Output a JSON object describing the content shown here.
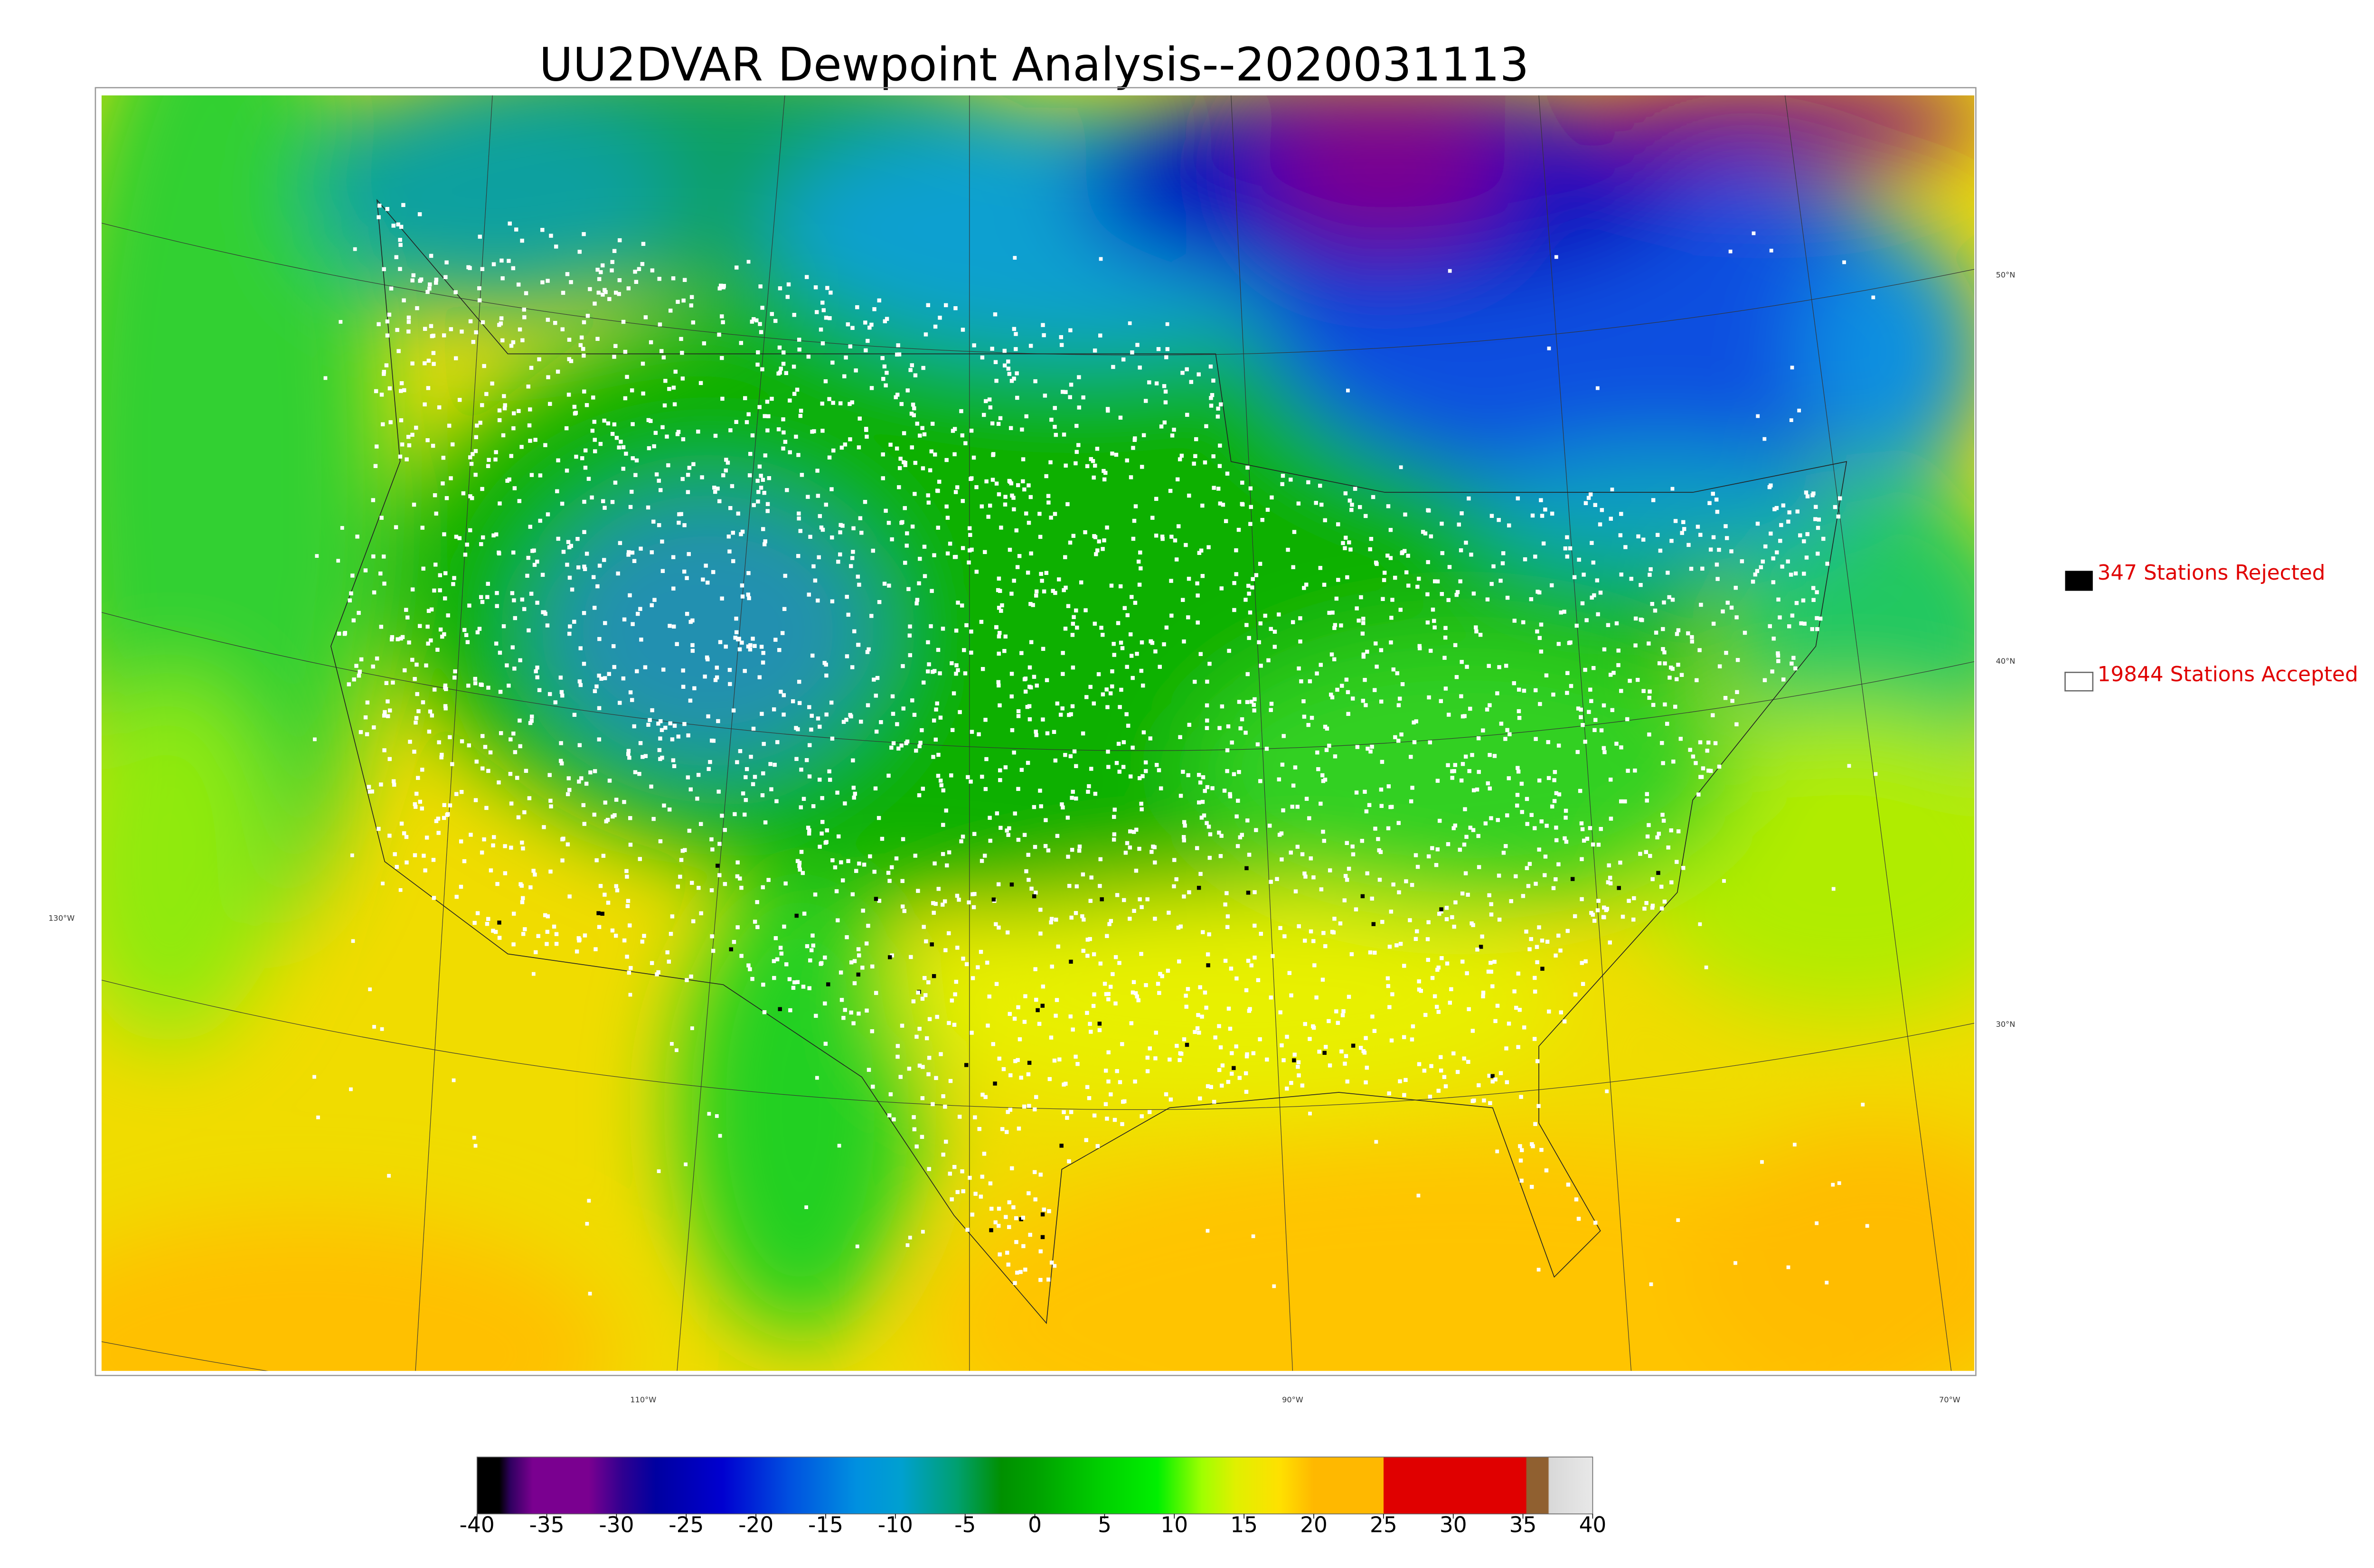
{
  "title": "UU2DVAR Dewpoint Analysis--2020031113",
  "legend": [
    "347 Stations Rejected",
    "19844 Stations Accepted"
  ],
  "graticule_labels": {
    "latitude": [
      "50°N",
      "40°N",
      "30°N"
    ],
    "longitude": [
      "130°W",
      "110°W",
      "90°W",
      "70°W"
    ]
  },
  "colorbar": {
    "range": [
      -40,
      40
    ],
    "ticks": [
      -40,
      -35,
      -30,
      -25,
      -20,
      -15,
      -10,
      -5,
      0,
      5,
      10,
      15,
      20,
      25,
      30,
      35,
      40
    ]
  }
}
